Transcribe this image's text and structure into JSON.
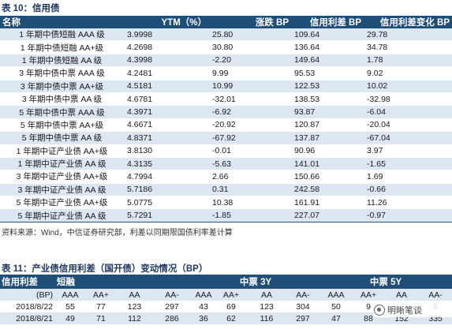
{
  "table10": {
    "caption": "表 10：信用债",
    "headers": [
      "名称",
      "YTM（%）",
      "涨跌 BP",
      "信用利差 BP",
      "信用利差变化 BP"
    ],
    "rows": [
      [
        "1 年期中债短融 AAA 级",
        "3.9998",
        "25.80",
        "109.64",
        "29.78"
      ],
      [
        "1 年期中债短融 AA+级",
        "4.2698",
        "30.80",
        "136.64",
        "34.78"
      ],
      [
        "1 年期中债短融 AA 级",
        "4.3998",
        "-2.20",
        "149.64",
        "1.78"
      ],
      [
        "3 年期中债中票 AAA 级",
        "4.2481",
        "9.99",
        "95.53",
        "9.02"
      ],
      [
        "3 年期中债中票 AA+级",
        "4.5181",
        "10.99",
        "122.53",
        "10.02"
      ],
      [
        "3 年期中债中票 AA 级",
        "4.6781",
        "-32.01",
        "138.53",
        "-32.98"
      ],
      [
        "5 年期中债中票 AAA 级",
        "4.3971",
        "-6.92",
        "93.87",
        "-6.04"
      ],
      [
        "5 年期中债中票 AA+级",
        "4.6671",
        "-20.92",
        "120.87",
        "-20.04"
      ],
      [
        "5 年期中债中票 AA 级",
        "4.8371",
        "-67.92",
        "137.87",
        "-67.04"
      ],
      [
        "1 年期中证产业债 AA+级",
        "3.8130",
        "-0.01",
        "90.96",
        "3.97"
      ],
      [
        "1 年期中证产业债 AA 级",
        "4.3135",
        "-5.63",
        "141.01",
        "-1.65"
      ],
      [
        "3 年期中证产业债 AA+级",
        "4.7994",
        "2.66",
        "150.66",
        "1.69"
      ],
      [
        "3 年期中证产业债 AA 级",
        "5.7186",
        "0.31",
        "242.58",
        "-0.66"
      ],
      [
        "5 年期中证产业债 AA+级",
        "5.0775",
        "10.38",
        "161.91",
        "11.26"
      ],
      [
        "5 年期中证产业债 AA 级",
        "5.7291",
        "-1.85",
        "227.07",
        "-0.97"
      ]
    ],
    "source": "资料来源：Wind，中信证券研究部，利差以同期限国债利率差计算"
  },
  "table11": {
    "caption": "表 11：产业债信用利差（国开债）变动情况（BP）",
    "header": {
      "label": "信用利差",
      "group1": "短融",
      "group2": "中票 3Y",
      "group3": "中票 5Y"
    },
    "subheader": [
      "(BP)",
      "AAA",
      "AA+",
      "AA",
      "AA-",
      "AAA",
      "AA+",
      "AA",
      "AA-",
      "AAA",
      "AA+",
      "AA",
      "AA-"
    ],
    "rows": [
      [
        "2018/8/22",
        "55",
        "77",
        "123",
        "297",
        "43",
        "69",
        "123",
        "304",
        "50",
        "9",
        "",
        "8"
      ],
      [
        "2018/8/21",
        "49",
        "71",
        "112",
        "286",
        "36",
        "62",
        "116",
        "297",
        "47",
        "88",
        "152",
        "335"
      ]
    ]
  },
  "watermark": {
    "text": "明晰笔谈",
    "icon": "wechat-account-icon"
  }
}
